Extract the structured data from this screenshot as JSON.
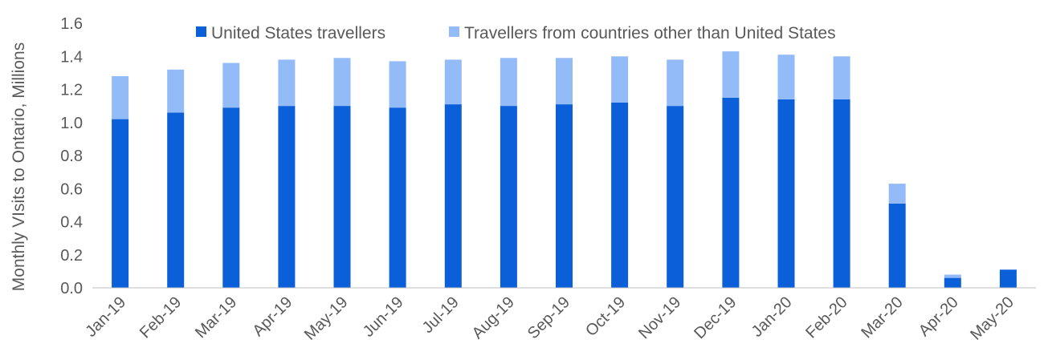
{
  "chart_data": {
    "type": "bar",
    "stacked": true,
    "title": "",
    "xlabel": "",
    "ylabel": "Monthly VIsits to Ontario, Millions",
    "ylim": [
      0,
      1.6
    ],
    "yticks": [
      "0.0",
      "0.2",
      "0.4",
      "0.6",
      "0.8",
      "1.0",
      "1.2",
      "1.4",
      "1.6"
    ],
    "grid": false,
    "legend_position": "top",
    "categories": [
      "Jan-19",
      "Feb-19",
      "Mar-19",
      "Apr-19",
      "May-19",
      "Jun-19",
      "Jul-19",
      "Aug-19",
      "Sep-19",
      "Oct-19",
      "Nov-19",
      "Dec-19",
      "Jan-20",
      "Feb-20",
      "Mar-20",
      "Apr-20",
      "May-20"
    ],
    "series": [
      {
        "name": "United States travellers",
        "color": "#0b5fd8",
        "values": [
          1.02,
          1.06,
          1.09,
          1.1,
          1.1,
          1.09,
          1.11,
          1.1,
          1.11,
          1.12,
          1.1,
          1.15,
          1.14,
          1.14,
          0.51,
          0.06,
          0.11
        ]
      },
      {
        "name": "Travellers from countries other than United States",
        "color": "#93bbf7",
        "values": [
          0.26,
          0.26,
          0.27,
          0.28,
          0.29,
          0.28,
          0.27,
          0.29,
          0.28,
          0.28,
          0.28,
          0.28,
          0.27,
          0.26,
          0.12,
          0.02,
          0.0
        ]
      }
    ]
  }
}
